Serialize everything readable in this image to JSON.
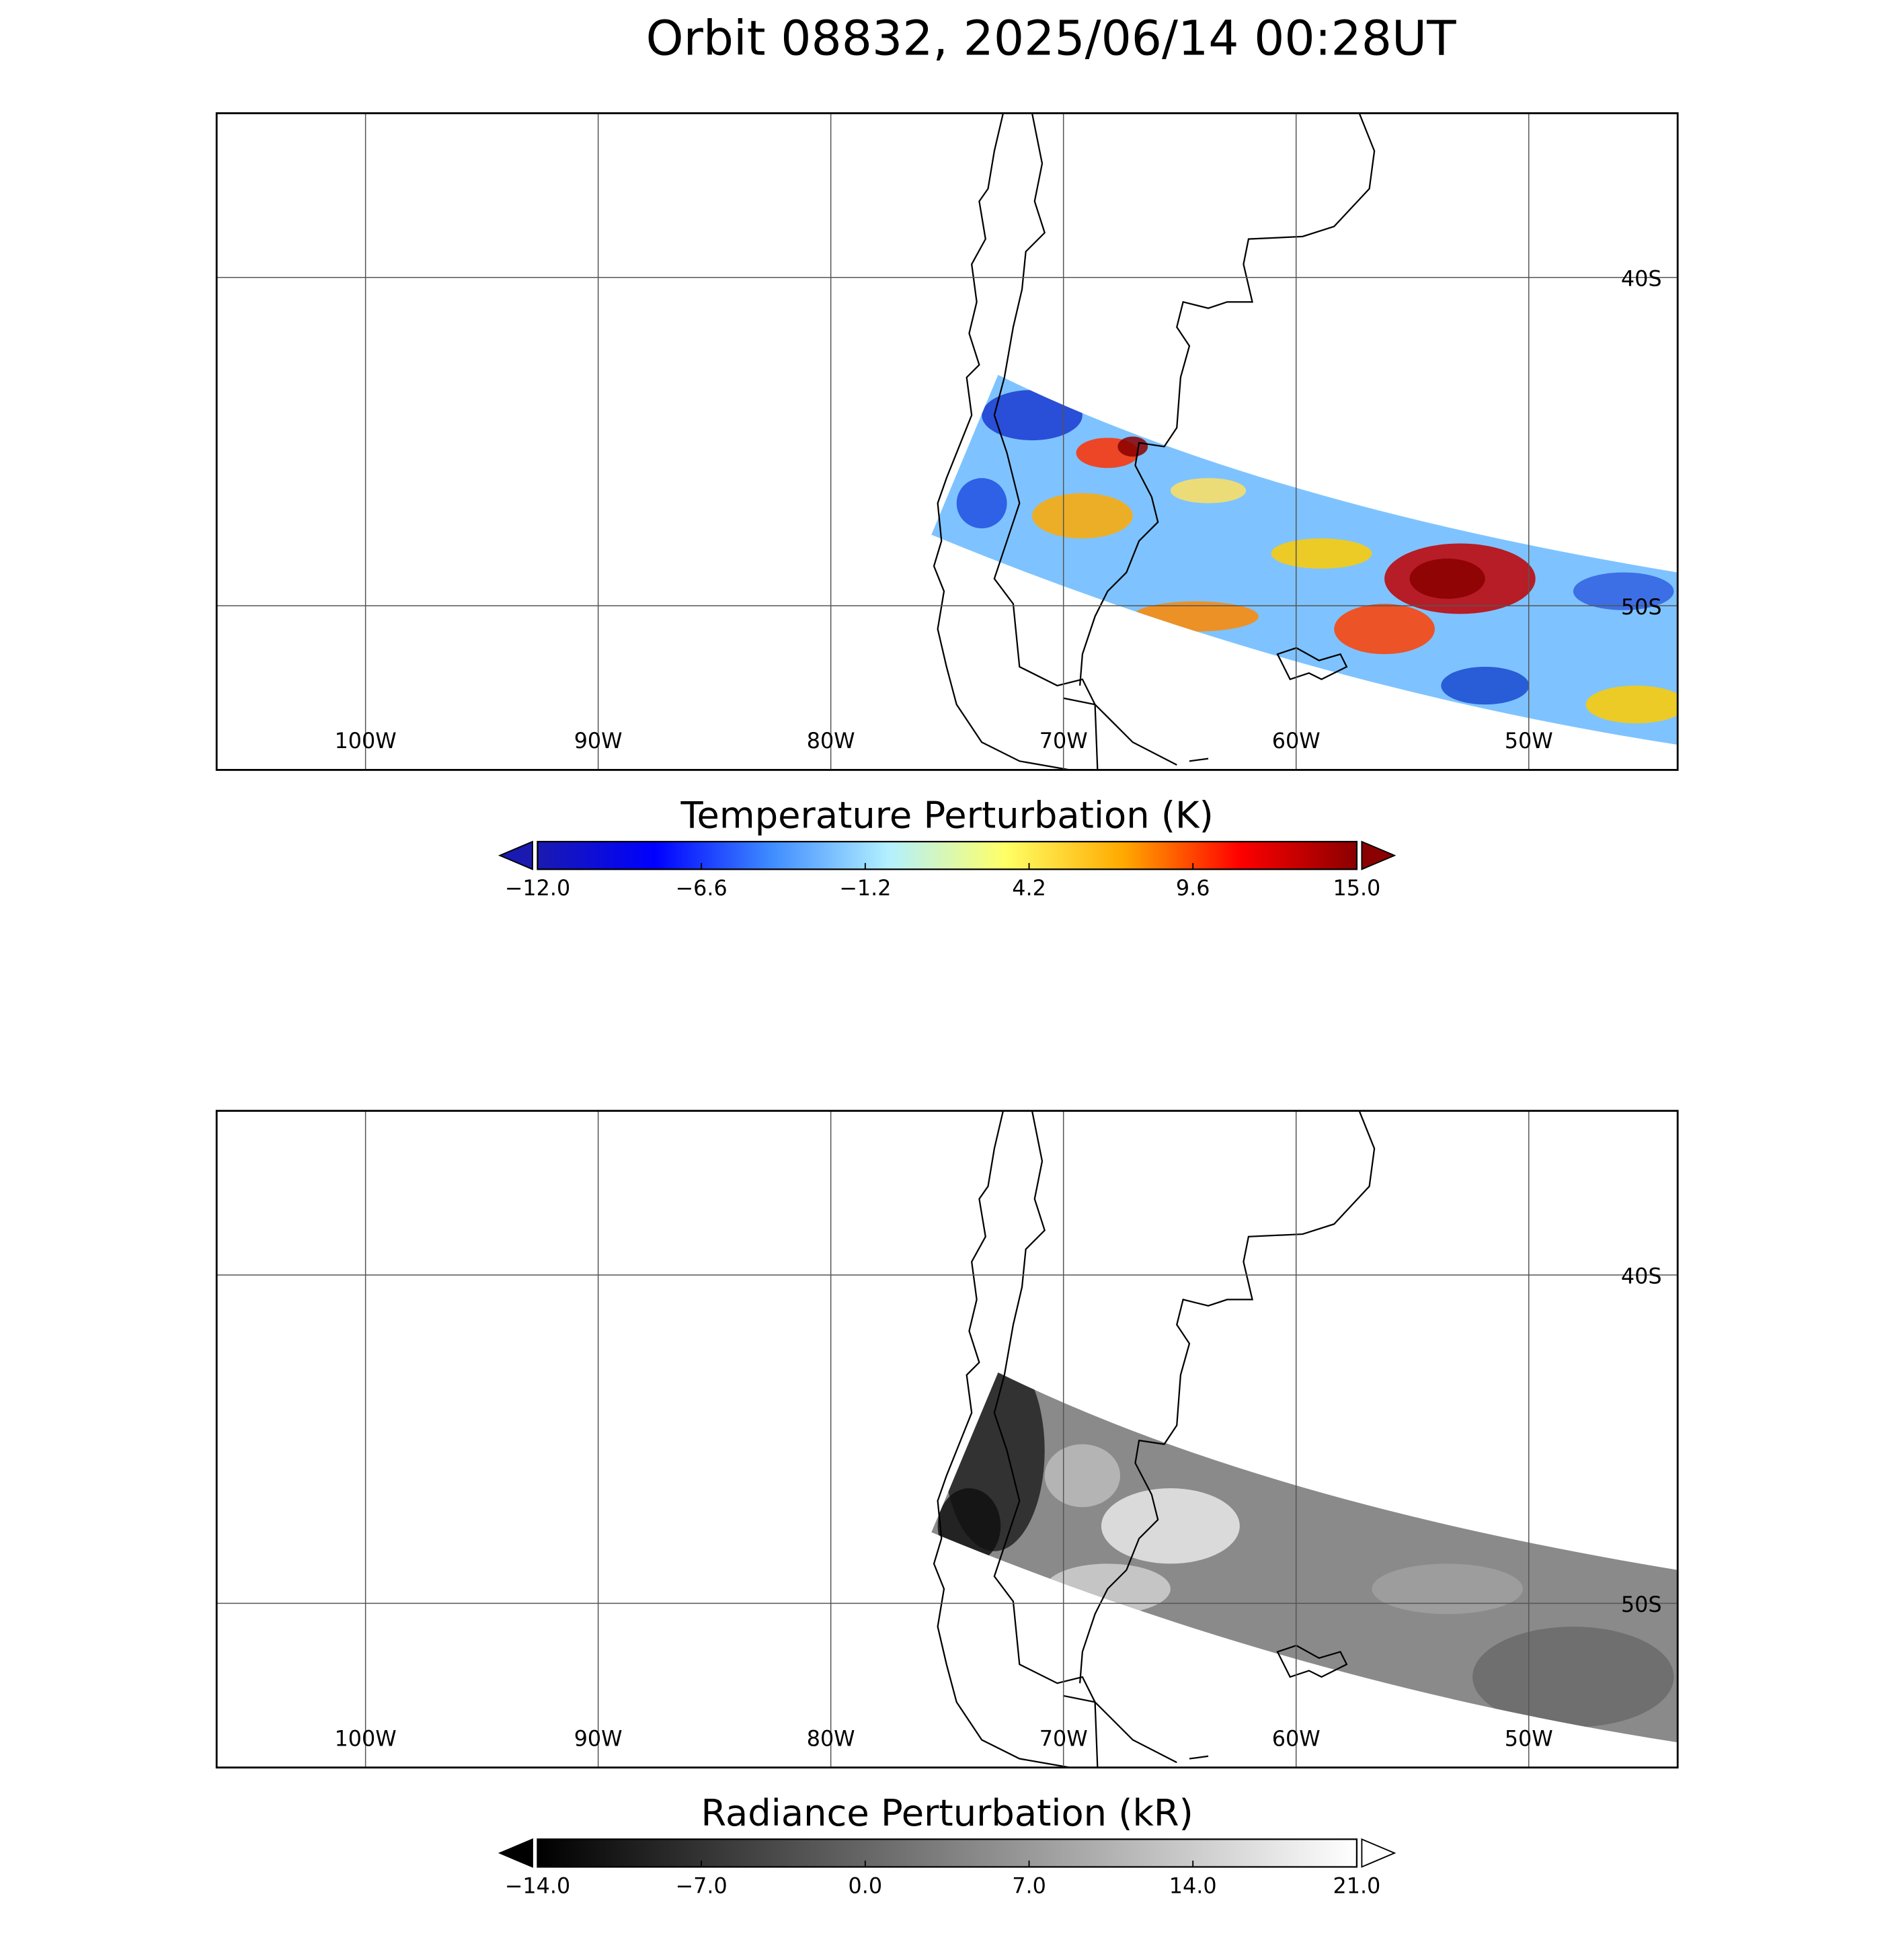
{
  "title": "Orbit 08832, 2025/06/14 00:28UT",
  "chart_data": [
    {
      "type": "map",
      "xlim": [
        -106.4,
        -43.6
      ],
      "ylim": [
        -55,
        -35
      ],
      "xticks": [
        {
          "value": -100,
          "label": "100W"
        },
        {
          "value": -90,
          "label": "90W"
        },
        {
          "value": -80,
          "label": "80W"
        },
        {
          "value": -70,
          "label": "70W"
        },
        {
          "value": -60,
          "label": "60W"
        },
        {
          "value": -50,
          "label": "50W"
        }
      ],
      "yticks": [
        {
          "value": -40,
          "label": "40S"
        },
        {
          "value": -50,
          "label": "50S"
        }
      ],
      "grid": true,
      "colorbar": {
        "title": "Temperature Perturbation (K)",
        "clim": [
          -12,
          15
        ],
        "ticks": [
          {
            "value": -12,
            "label": "−12.0"
          },
          {
            "value": -6.6,
            "label": "−6.6"
          },
          {
            "value": -1.2,
            "label": "−1.2"
          },
          {
            "value": 4.2,
            "label": "4.2"
          },
          {
            "value": 9.6,
            "label": "9.6"
          },
          {
            "value": 15,
            "label": "15.0"
          }
        ],
        "colors": [
          "#1a1ab0",
          "#0000ff",
          "#3f8cff",
          "#b3f0ff",
          "#ffff66",
          "#ffaa00",
          "#ff0000",
          "#8b0000"
        ],
        "extend_colors": [
          "#1a1ab0",
          "#8b0000"
        ]
      }
    },
    {
      "type": "map",
      "xlim": [
        -106.4,
        -43.6
      ],
      "ylim": [
        -55,
        -35
      ],
      "xticks": [
        {
          "value": -100,
          "label": "100W"
        },
        {
          "value": -90,
          "label": "90W"
        },
        {
          "value": -80,
          "label": "80W"
        },
        {
          "value": -70,
          "label": "70W"
        },
        {
          "value": -60,
          "label": "60W"
        },
        {
          "value": -50,
          "label": "50W"
        }
      ],
      "yticks": [
        {
          "value": -40,
          "label": "40S"
        },
        {
          "value": -50,
          "label": "50S"
        }
      ],
      "grid": true,
      "colorbar": {
        "title": "Radiance Perturbation (kR)",
        "clim": [
          -14,
          21
        ],
        "ticks": [
          {
            "value": -14,
            "label": "−14.0"
          },
          {
            "value": -7,
            "label": "−7.0"
          },
          {
            "value": 0,
            "label": "0.0"
          },
          {
            "value": 7,
            "label": "7.0"
          },
          {
            "value": 14,
            "label": "14.0"
          },
          {
            "value": 21,
            "label": "21.0"
          }
        ],
        "colors": [
          "#000000",
          "#ffffff"
        ],
        "extend_colors": [
          "#000000",
          "#ffffff"
        ]
      }
    }
  ]
}
